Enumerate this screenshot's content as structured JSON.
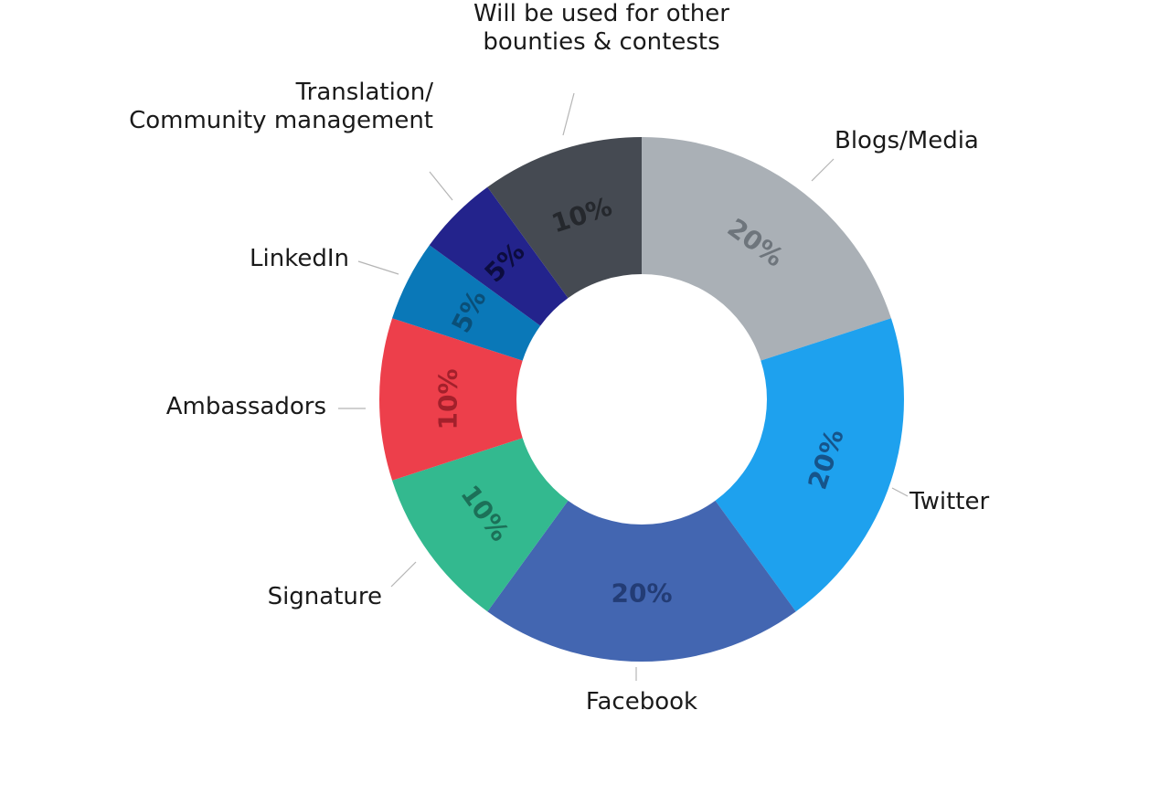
{
  "chart_data": {
    "type": "pie",
    "donut": true,
    "categories": [
      "Blogs/Media",
      "Twitter",
      "Facebook",
      "Signature",
      "Ambassadors",
      "LinkedIn",
      "Translation/\nCommunity management",
      "Will be used for other\nbounties & contests"
    ],
    "values": [
      20,
      20,
      20,
      10,
      10,
      5,
      5,
      10
    ],
    "value_labels": [
      "20%",
      "20%",
      "20%",
      "10%",
      "10%",
      "5%",
      "5%",
      "10%"
    ],
    "colors": [
      "#aab0b6",
      "#1ea1ee",
      "#4366b1",
      "#33b98f",
      "#ed3f4b",
      "#0a78b8",
      "#23238c",
      "#454a52"
    ],
    "label_colors": [
      "#6e757c",
      "#16548a",
      "#233c75",
      "#1c7058",
      "#a3202b",
      "#0a4f78",
      "#0c0c3f",
      "#25282d"
    ],
    "legend": "none"
  }
}
